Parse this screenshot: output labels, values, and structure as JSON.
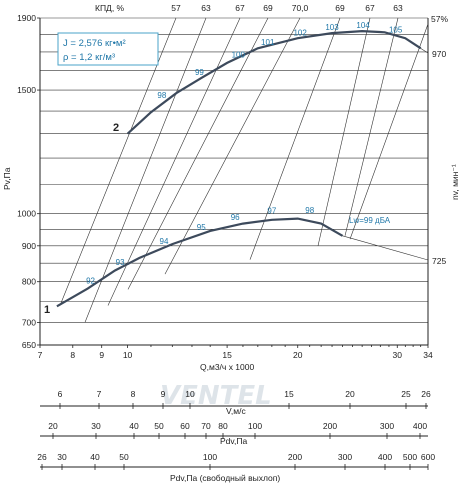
{
  "chart_data": {
    "type": "line",
    "xlabel": "Q,м3/ч x 1000",
    "ylabel": "Pv,Па",
    "right_label": "nv, мин⁻¹",
    "x_scale": "log",
    "y_scale": "log",
    "xlim": [
      7,
      34
    ],
    "ylim": [
      650,
      1900
    ],
    "x_ticks": [
      7,
      8,
      9,
      10,
      15,
      20,
      30,
      34
    ],
    "y_ticks": [
      650,
      700,
      800,
      900,
      1000,
      1500,
      1900
    ],
    "efficiency_title": "КПД, %",
    "efficiency_top_labels": [
      "57",
      "63",
      "67",
      "69",
      "70,0",
      "69",
      "67",
      "63"
    ],
    "efficiency_right_label": "57%",
    "legend": [
      "J = 2,576 кг•м²",
      "ρ = 1,2 кг/м³"
    ],
    "series": [
      {
        "name": "970",
        "curve_marker": "2",
        "x": [
          10,
          11,
          12.2,
          13.5,
          15,
          17,
          20,
          23,
          26,
          28.5,
          31,
          33
        ],
        "y": [
          1300,
          1395,
          1485,
          1560,
          1640,
          1720,
          1778,
          1808,
          1820,
          1813,
          1778,
          1720
        ],
        "noise_labels": [
          {
            "text": "98",
            "x": 11.5,
            "y": 1462
          },
          {
            "text": "99",
            "x": 13.4,
            "y": 1575
          },
          {
            "text": "100",
            "x": 15.7,
            "y": 1668
          },
          {
            "text": "101",
            "x": 17.7,
            "y": 1738
          },
          {
            "text": "102",
            "x": 20.2,
            "y": 1795
          },
          {
            "text": "103",
            "x": 23,
            "y": 1828
          },
          {
            "text": "104",
            "x": 26.1,
            "y": 1840
          },
          {
            "text": "105",
            "x": 29.8,
            "y": 1812
          }
        ]
      },
      {
        "name": "725",
        "curve_marker": "1",
        "x": [
          7.5,
          8.5,
          9.5,
          10.5,
          12,
          14,
          16,
          18,
          20,
          22,
          24
        ],
        "y": [
          738,
          782,
          830,
          865,
          905,
          945,
          968,
          980,
          984,
          968,
          930
        ],
        "noise_labels": [
          {
            "text": "92",
            "x": 8.6,
            "y": 795
          },
          {
            "text": "93",
            "x": 9.7,
            "y": 845
          },
          {
            "text": "94",
            "x": 11.6,
            "y": 905
          },
          {
            "text": "95",
            "x": 13.5,
            "y": 948
          },
          {
            "text": "96",
            "x": 15.5,
            "y": 980
          },
          {
            "text": "97",
            "x": 18,
            "y": 1000
          },
          {
            "text": "98",
            "x": 21,
            "y": 1002
          }
        ],
        "lw_label": "Lw=99 дБА"
      }
    ],
    "bottom_scales": [
      {
        "name": "V,м/с",
        "ticks": [
          "6",
          "7",
          "8",
          "9",
          "10",
          "15",
          "20",
          "25",
          "26"
        ]
      },
      {
        "name": "Pdv,Па",
        "ticks": [
          "20",
          "30",
          "40",
          "50",
          "60",
          "70",
          "80",
          "100",
          "200",
          "300",
          "400"
        ]
      },
      {
        "name": "Pdv,Па (свободный выхлоп)",
        "ticks": [
          "26",
          "30",
          "40",
          "50",
          "100",
          "200",
          "300",
          "400",
          "500",
          "600"
        ]
      }
    ]
  },
  "watermark": "VENTEL"
}
